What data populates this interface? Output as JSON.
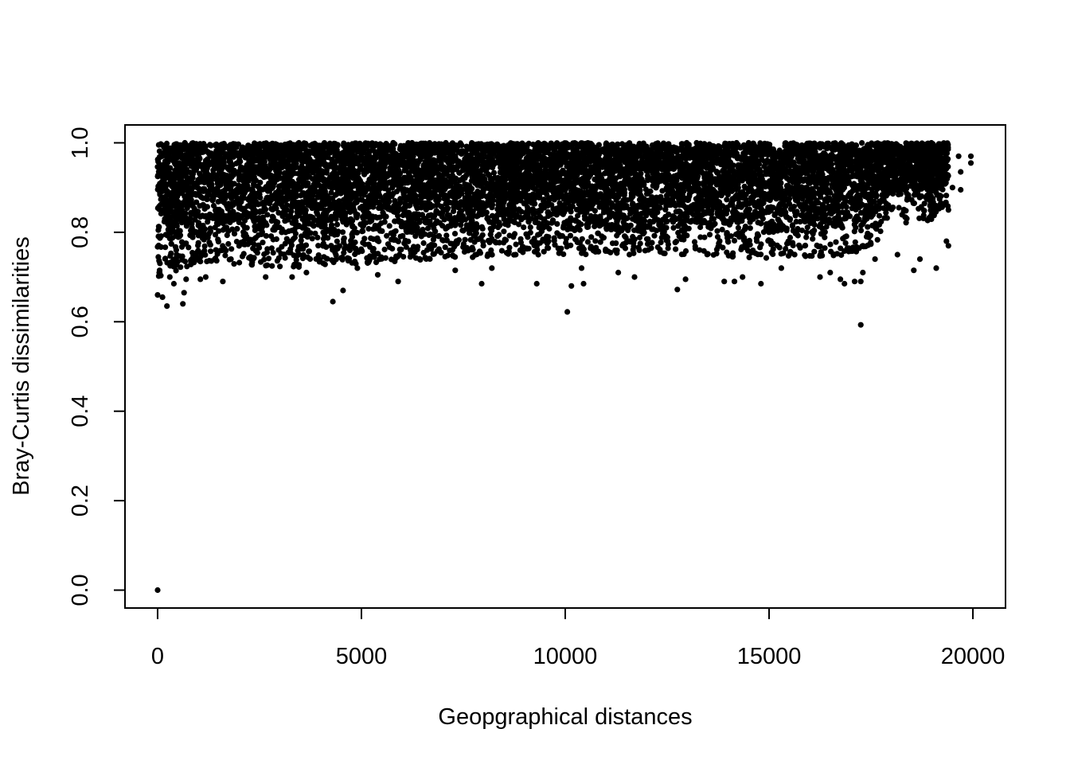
{
  "chart_data": {
    "type": "scatter",
    "title": "",
    "xlabel": "Geopgraphical distances",
    "ylabel": "Bray-Curtis dissimilarities",
    "xlim": [
      -800,
      20800
    ],
    "ylim": [
      -0.04,
      1.04
    ],
    "x_ticks": [
      0,
      5000,
      10000,
      15000,
      20000
    ],
    "x_tick_labels": [
      "0",
      "5000",
      "10000",
      "15000",
      "20000"
    ],
    "y_ticks": [
      0.0,
      0.2,
      0.4,
      0.6,
      0.8,
      1.0
    ],
    "y_tick_labels": [
      "0.0",
      "0.2",
      "0.4",
      "0.6",
      "0.8",
      "1.0"
    ],
    "grid": false,
    "legend": "none",
    "marker_color": "#000000",
    "dense_band": {
      "x_range": [
        0,
        19400
      ],
      "y_range": [
        0.76,
        1.0
      ],
      "lower_edge": [
        [
          0,
          0.75
        ],
        [
          1000,
          0.78
        ],
        [
          3000,
          0.77
        ],
        [
          5000,
          0.78
        ],
        [
          7000,
          0.79
        ],
        [
          9000,
          0.8
        ],
        [
          11000,
          0.8
        ],
        [
          13000,
          0.8
        ],
        [
          15000,
          0.79
        ],
        [
          17000,
          0.8
        ],
        [
          17600,
          0.82
        ],
        [
          18000,
          0.9
        ],
        [
          18500,
          0.86
        ],
        [
          19000,
          0.88
        ],
        [
          19400,
          0.9
        ]
      ]
    },
    "sample_points": [
      {
        "x": 0,
        "y": 0.0
      },
      {
        "x": 0,
        "y": 0.66
      },
      {
        "x": 40,
        "y": 0.71
      },
      {
        "x": 120,
        "y": 0.655
      },
      {
        "x": 230,
        "y": 0.635
      },
      {
        "x": 300,
        "y": 0.7
      },
      {
        "x": 400,
        "y": 0.685
      },
      {
        "x": 620,
        "y": 0.64
      },
      {
        "x": 650,
        "y": 0.665
      },
      {
        "x": 700,
        "y": 0.695
      },
      {
        "x": 1050,
        "y": 0.695
      },
      {
        "x": 1180,
        "y": 0.7
      },
      {
        "x": 1600,
        "y": 0.69
      },
      {
        "x": 1800,
        "y": 0.74
      },
      {
        "x": 2650,
        "y": 0.7
      },
      {
        "x": 3300,
        "y": 0.7
      },
      {
        "x": 3650,
        "y": 0.71
      },
      {
        "x": 4300,
        "y": 0.645
      },
      {
        "x": 4550,
        "y": 0.67
      },
      {
        "x": 4900,
        "y": 0.72
      },
      {
        "x": 5400,
        "y": 0.705
      },
      {
        "x": 5900,
        "y": 0.69
      },
      {
        "x": 7300,
        "y": 0.715
      },
      {
        "x": 7950,
        "y": 0.685
      },
      {
        "x": 8200,
        "y": 0.72
      },
      {
        "x": 9300,
        "y": 0.685
      },
      {
        "x": 10050,
        "y": 0.622
      },
      {
        "x": 10150,
        "y": 0.68
      },
      {
        "x": 10450,
        "y": 0.685
      },
      {
        "x": 10400,
        "y": 0.72
      },
      {
        "x": 11300,
        "y": 0.71
      },
      {
        "x": 11700,
        "y": 0.7
      },
      {
        "x": 12750,
        "y": 0.672
      },
      {
        "x": 12950,
        "y": 0.695
      },
      {
        "x": 13900,
        "y": 0.69
      },
      {
        "x": 14150,
        "y": 0.69
      },
      {
        "x": 14350,
        "y": 0.7
      },
      {
        "x": 14800,
        "y": 0.685
      },
      {
        "x": 15300,
        "y": 0.72
      },
      {
        "x": 16250,
        "y": 0.7
      },
      {
        "x": 16500,
        "y": 0.71
      },
      {
        "x": 16750,
        "y": 0.695
      },
      {
        "x": 16850,
        "y": 0.685
      },
      {
        "x": 17100,
        "y": 0.69
      },
      {
        "x": 17250,
        "y": 0.69
      },
      {
        "x": 17250,
        "y": 0.593
      },
      {
        "x": 17300,
        "y": 0.71
      },
      {
        "x": 17600,
        "y": 0.74
      },
      {
        "x": 18150,
        "y": 0.75
      },
      {
        "x": 18550,
        "y": 0.715
      },
      {
        "x": 18700,
        "y": 0.74
      },
      {
        "x": 19100,
        "y": 0.72
      },
      {
        "x": 19350,
        "y": 0.78
      },
      {
        "x": 19400,
        "y": 0.77
      },
      {
        "x": 19700,
        "y": 0.895
      },
      {
        "x": 19700,
        "y": 0.935
      },
      {
        "x": 19650,
        "y": 0.97
      },
      {
        "x": 19950,
        "y": 0.97
      },
      {
        "x": 19950,
        "y": 0.955
      },
      {
        "x": 19400,
        "y": 0.85
      },
      {
        "x": 19500,
        "y": 0.9
      }
    ]
  }
}
